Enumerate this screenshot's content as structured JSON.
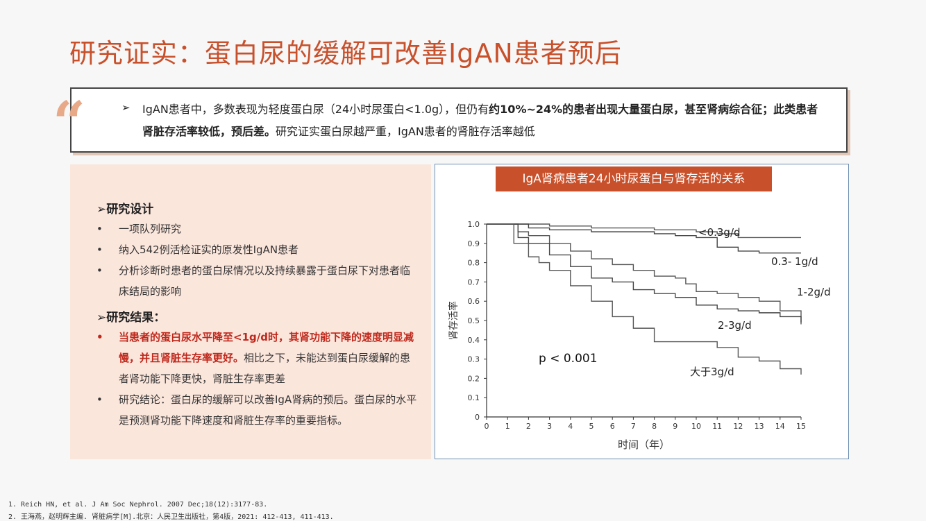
{
  "title": "研究证实：蛋白尿的缓解可改善IgAN患者预后",
  "summary": {
    "arrow": "➢",
    "part1": "IgAN患者中，多数表现为轻度蛋白尿（24小时尿蛋白<1.0g），但仍有",
    "bold": "约10%~24%的患者出现大量蛋白尿，甚至肾病综合征；此类患者肾脏存活率较低，预后差。",
    "part2": "研究证实蛋白尿越严重，IgAN患者的肾脏存活率越低"
  },
  "left": {
    "design_head": "➢研究设计",
    "design_items": [
      "一项队列研究",
      "纳入542例活检证实的原发性IgAN患者",
      "分析诊断时患者的蛋白尿情况以及持续暴露于蛋白尿下对患者临床结局的影响"
    ],
    "result_head": "➢研究结果：",
    "result1_red": "当患者的蛋白尿水平降至<1g/d时，其肾功能下降的速度明显减慢，并且肾脏生存率更好。",
    "result1_rest": "相比之下，未能达到蛋白尿缓解的患者肾功能下降更快，肾脏生存率更差",
    "result2": "研究结论：蛋白尿的缓解可以改善IgA肾病的预后。蛋白尿的水平是预测肾功能下降速度和肾脏生存率的重要指标。",
    "bullet": "•"
  },
  "chart_title": "IgA肾病患者24小时尿蛋白与肾存活的关系",
  "chart_data": {
    "type": "line",
    "xlabel": "时间（年）",
    "ylabel": "肾存活率",
    "xlim": [
      0,
      15
    ],
    "ylim": [
      0,
      1.0
    ],
    "xticks": [
      "0",
      "1",
      "2",
      "3",
      "4",
      "5",
      "6",
      "7",
      "8",
      "9",
      "10",
      "11",
      "12",
      "13",
      "14",
      "15"
    ],
    "yticks": [
      "0",
      "0.1",
      "0.2",
      "0.3",
      "0.4",
      "0.5",
      "0.6",
      "0.7",
      "0.8",
      "0.9",
      "1.0"
    ],
    "annotation": "p < 0.001",
    "series": [
      {
        "name": "<0.3g/d",
        "x": [
          0,
          1,
          2,
          3,
          4,
          5,
          6,
          7,
          8,
          9,
          10,
          11,
          12,
          13,
          14,
          15
        ],
        "y": [
          1,
          1,
          1,
          0.99,
          0.99,
          0.98,
          0.98,
          0.98,
          0.97,
          0.97,
          0.96,
          0.95,
          0.93,
          0.93,
          0.93,
          0.93
        ]
      },
      {
        "name": "0.3- 1g/d",
        "x": [
          0,
          1,
          2,
          3,
          4,
          5,
          6,
          7,
          8,
          9,
          10,
          11,
          12,
          13,
          14,
          15
        ],
        "y": [
          1,
          1,
          0.98,
          0.97,
          0.97,
          0.96,
          0.96,
          0.96,
          0.95,
          0.94,
          0.93,
          0.88,
          0.86,
          0.85,
          0.85,
          0.85
        ]
      },
      {
        "name": "1-2g/d",
        "x": [
          0,
          1,
          1.5,
          2,
          3,
          4,
          5,
          6,
          7,
          8,
          9,
          9.5,
          10,
          11,
          12,
          13,
          14,
          15
        ],
        "y": [
          1,
          1,
          0.96,
          0.94,
          0.9,
          0.86,
          0.82,
          0.79,
          0.76,
          0.73,
          0.72,
          0.69,
          0.65,
          0.64,
          0.62,
          0.6,
          0.55,
          0.48
        ]
      },
      {
        "name": "2-3g/d",
        "x": [
          0,
          1,
          1.5,
          2,
          3,
          4,
          5,
          6,
          7,
          8,
          9,
          10,
          11,
          12,
          13,
          14,
          15
        ],
        "y": [
          1,
          1,
          0.93,
          0.9,
          0.84,
          0.78,
          0.72,
          0.7,
          0.66,
          0.64,
          0.62,
          0.58,
          0.56,
          0.55,
          0.54,
          0.52,
          0.49
        ]
      },
      {
        "name": "大于3g/d",
        "x": [
          0,
          1,
          1.3,
          2,
          2.5,
          3,
          4,
          5,
          6,
          7,
          8,
          9,
          10,
          11,
          12,
          13,
          14,
          15
        ],
        "y": [
          1,
          1,
          0.9,
          0.83,
          0.8,
          0.76,
          0.68,
          0.6,
          0.52,
          0.46,
          0.39,
          0.39,
          0.39,
          0.36,
          0.31,
          0.29,
          0.25,
          0.22
        ]
      }
    ]
  },
  "footnotes": [
    "1.   Reich HN, et al. J Am Soc Nephrol. 2007 Dec;18(12):3177-83.",
    "2.   王海燕，赵明辉主编. 肾脏病学[M].北京：人民卫生出版社，第4版，2021: 412-413, 411-413."
  ]
}
